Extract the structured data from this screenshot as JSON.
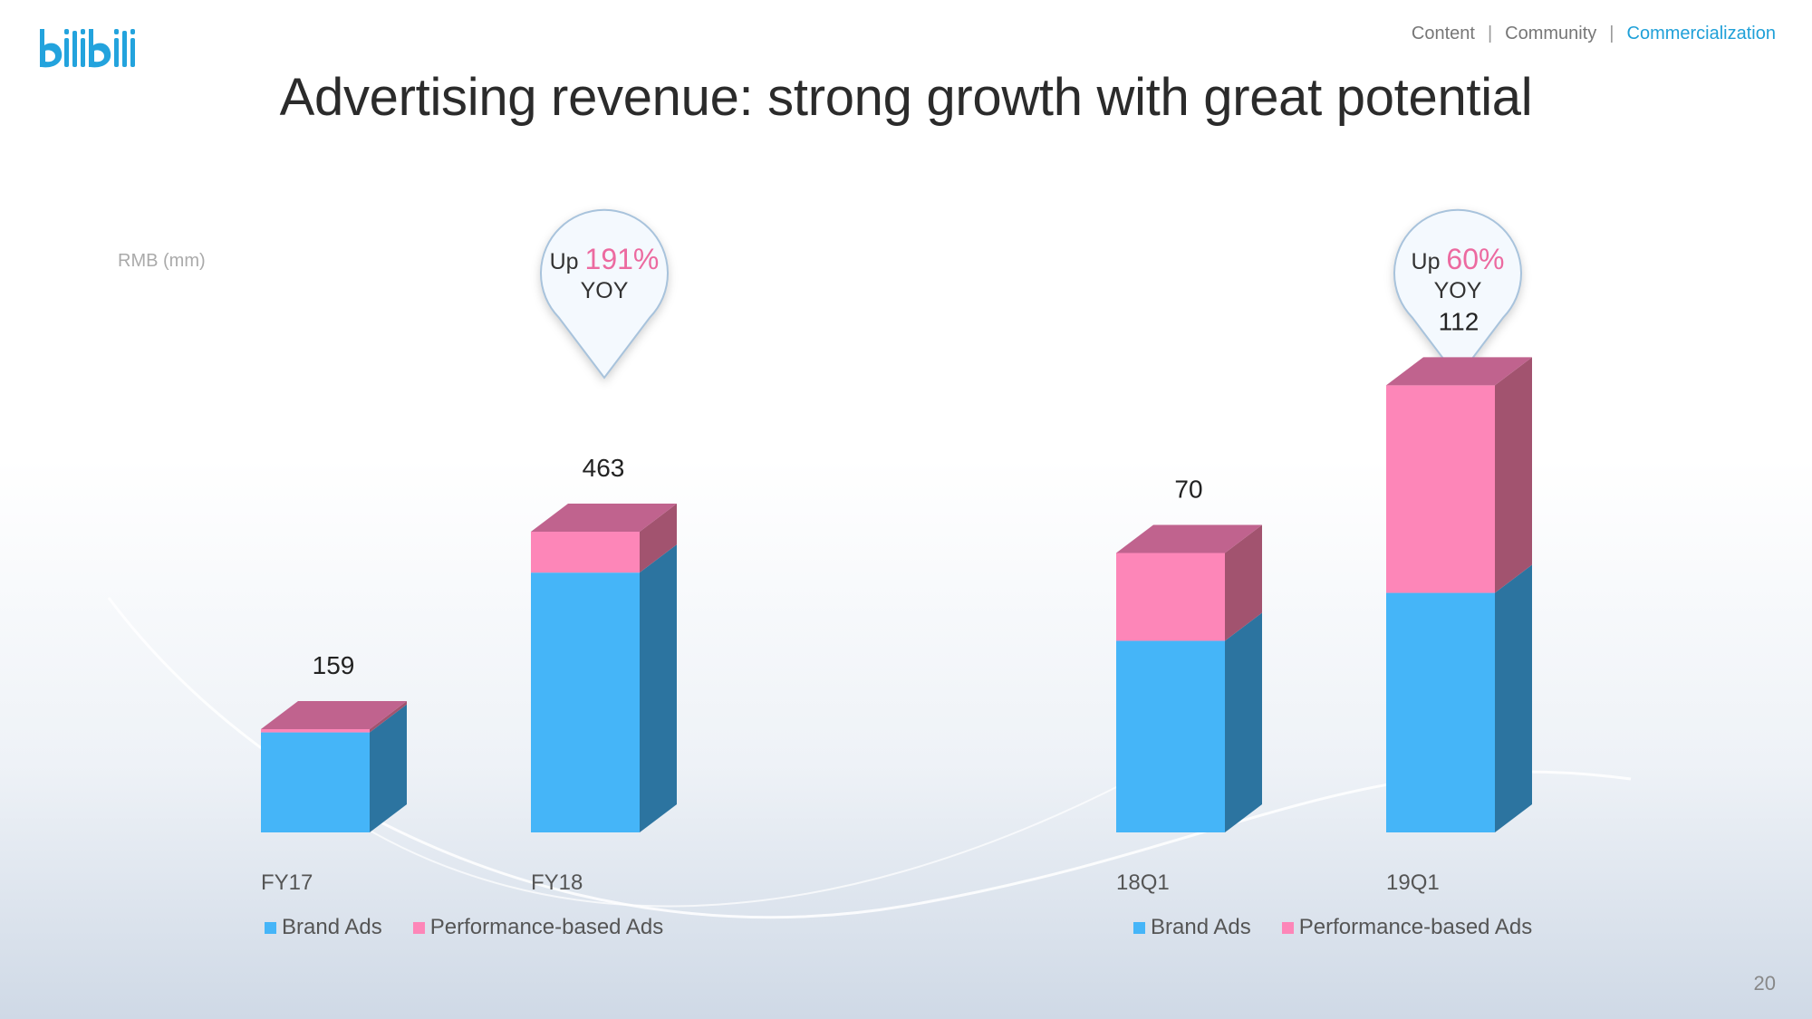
{
  "header": {
    "nav": [
      {
        "label": "Content",
        "active": false
      },
      {
        "label": "Community",
        "active": false
      },
      {
        "label": "Commercialization",
        "active": true
      }
    ],
    "title": "Advertising revenue:  strong growth with great potential",
    "unit_label": "RMB (mm)",
    "page_number": "20",
    "logo_text": "bilibili"
  },
  "colors": {
    "brand_ads": "#45b5f8",
    "brand_ads_side": "#2c74a0",
    "performance_ads": "#fd86b8",
    "performance_ads_top": "#c0638e",
    "performance_ads_side": "#a2536f",
    "highlight_pink": "#ec6aa0",
    "accent_blue": "#1fa0d8"
  },
  "chart_data": [
    {
      "type": "bar",
      "stacked": true,
      "categories": [
        "FY17",
        "FY18"
      ],
      "series": [
        {
          "name": "Brand Ads",
          "values": [
            154,
            400
          ]
        },
        {
          "name": "Performance-based Ads",
          "values": [
            5,
            63
          ]
        }
      ],
      "totals": [
        "159",
        "463"
      ],
      "callout": {
        "prefix": "Up ",
        "value": "191%",
        "suffix": "YOY"
      },
      "legend": [
        "Brand Ads",
        "Performance-based Ads"
      ]
    },
    {
      "type": "bar",
      "stacked": true,
      "categories": [
        "18Q1",
        "19Q1"
      ],
      "series": [
        {
          "name": "Brand Ads",
          "values": [
            48,
            60
          ]
        },
        {
          "name": "Performance-based Ads",
          "values": [
            22,
            52
          ]
        }
      ],
      "totals": [
        "70",
        "112"
      ],
      "callout": {
        "prefix": "Up ",
        "value": "60%",
        "suffix": "YOY"
      },
      "legend": [
        "Brand Ads",
        "Performance-based Ads"
      ]
    }
  ]
}
